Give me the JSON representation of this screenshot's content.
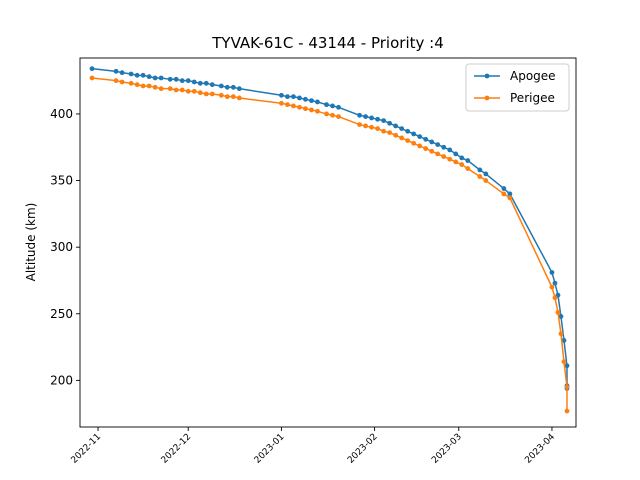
{
  "chart_data": {
    "type": "line",
    "title": "TYVAK-61C - 43144 - Priority :4",
    "xlabel": "",
    "ylabel": "Altitude (km)",
    "xlim": [
      "2022-10-26",
      "2023-04-09"
    ],
    "ylim": [
      165,
      442
    ],
    "x_ticks": [
      "2022-11",
      "2022-12",
      "2023-01",
      "2023-02",
      "2023-03",
      "2023-04"
    ],
    "y_ticks": [
      200,
      250,
      300,
      350,
      400
    ],
    "grid": false,
    "legend": "top-right",
    "series": [
      {
        "name": "Apogee",
        "color": "#1f77b4",
        "points": [
          [
            "2022-10-30",
            434
          ],
          [
            "2022-11-07",
            432
          ],
          [
            "2022-11-09",
            431
          ],
          [
            "2022-11-12",
            430
          ],
          [
            "2022-11-14",
            429
          ],
          [
            "2022-11-16",
            429
          ],
          [
            "2022-11-18",
            428
          ],
          [
            "2022-11-20",
            427
          ],
          [
            "2022-11-22",
            427
          ],
          [
            "2022-11-25",
            426
          ],
          [
            "2022-11-27",
            426
          ],
          [
            "2022-11-29",
            425
          ],
          [
            "2022-12-01",
            425
          ],
          [
            "2022-12-03",
            424
          ],
          [
            "2022-12-05",
            423
          ],
          [
            "2022-12-07",
            423
          ],
          [
            "2022-12-09",
            422
          ],
          [
            "2022-12-12",
            421
          ],
          [
            "2022-12-14",
            420
          ],
          [
            "2022-12-16",
            420
          ],
          [
            "2022-12-18",
            419
          ],
          [
            "2023-01-01",
            414
          ],
          [
            "2023-01-03",
            413
          ],
          [
            "2023-01-05",
            413
          ],
          [
            "2023-01-07",
            412
          ],
          [
            "2023-01-09",
            411
          ],
          [
            "2023-01-11",
            410
          ],
          [
            "2023-01-13",
            409
          ],
          [
            "2023-01-16",
            407
          ],
          [
            "2023-01-18",
            406
          ],
          [
            "2023-01-20",
            405
          ],
          [
            "2023-01-27",
            399
          ],
          [
            "2023-01-29",
            398
          ],
          [
            "2023-01-31",
            397
          ],
          [
            "2023-02-02",
            396
          ],
          [
            "2023-02-04",
            395
          ],
          [
            "2023-02-06",
            393
          ],
          [
            "2023-02-08",
            391
          ],
          [
            "2023-02-10",
            389
          ],
          [
            "2023-02-12",
            387
          ],
          [
            "2023-02-14",
            385
          ],
          [
            "2023-02-16",
            383
          ],
          [
            "2023-02-18",
            381
          ],
          [
            "2023-02-20",
            379
          ],
          [
            "2023-02-22",
            377
          ],
          [
            "2023-02-24",
            375
          ],
          [
            "2023-02-26",
            373
          ],
          [
            "2023-02-28",
            370
          ],
          [
            "2023-03-02",
            367
          ],
          [
            "2023-03-04",
            365
          ],
          [
            "2023-03-08",
            358
          ],
          [
            "2023-03-10",
            355
          ],
          [
            "2023-03-16",
            344
          ],
          [
            "2023-03-18",
            340
          ],
          [
            "2023-04-01",
            281
          ],
          [
            "2023-04-02",
            273
          ],
          [
            "2023-04-03",
            264
          ],
          [
            "2023-04-04",
            248
          ],
          [
            "2023-04-05",
            230
          ],
          [
            "2023-04-06",
            211
          ],
          [
            "2023-04-06",
            196
          ],
          [
            "2023-04-06",
            194
          ]
        ]
      },
      {
        "name": "Perigee",
        "color": "#ff7f0e",
        "points": [
          [
            "2022-10-30",
            427
          ],
          [
            "2022-11-07",
            425
          ],
          [
            "2022-11-09",
            424
          ],
          [
            "2022-11-12",
            423
          ],
          [
            "2022-11-14",
            422
          ],
          [
            "2022-11-16",
            421
          ],
          [
            "2022-11-18",
            421
          ],
          [
            "2022-11-20",
            420
          ],
          [
            "2022-11-22",
            419
          ],
          [
            "2022-11-25",
            419
          ],
          [
            "2022-11-27",
            418
          ],
          [
            "2022-11-29",
            418
          ],
          [
            "2022-12-01",
            417
          ],
          [
            "2022-12-03",
            417
          ],
          [
            "2022-12-05",
            416
          ],
          [
            "2022-12-07",
            415
          ],
          [
            "2022-12-09",
            415
          ],
          [
            "2022-12-12",
            414
          ],
          [
            "2022-12-14",
            413
          ],
          [
            "2022-12-16",
            413
          ],
          [
            "2022-12-18",
            412
          ],
          [
            "2023-01-01",
            408
          ],
          [
            "2023-01-03",
            407
          ],
          [
            "2023-01-05",
            406
          ],
          [
            "2023-01-07",
            405
          ],
          [
            "2023-01-09",
            404
          ],
          [
            "2023-01-11",
            403
          ],
          [
            "2023-01-13",
            402
          ],
          [
            "2023-01-16",
            400
          ],
          [
            "2023-01-18",
            399
          ],
          [
            "2023-01-20",
            398
          ],
          [
            "2023-01-27",
            392
          ],
          [
            "2023-01-29",
            391
          ],
          [
            "2023-01-31",
            390
          ],
          [
            "2023-02-02",
            389
          ],
          [
            "2023-02-04",
            387
          ],
          [
            "2023-02-06",
            386
          ],
          [
            "2023-02-08",
            384
          ],
          [
            "2023-02-10",
            382
          ],
          [
            "2023-02-12",
            380
          ],
          [
            "2023-02-14",
            378
          ],
          [
            "2023-02-16",
            376
          ],
          [
            "2023-02-18",
            374
          ],
          [
            "2023-02-20",
            372
          ],
          [
            "2023-02-22",
            370
          ],
          [
            "2023-02-24",
            368
          ],
          [
            "2023-02-26",
            366
          ],
          [
            "2023-02-28",
            364
          ],
          [
            "2023-03-02",
            362
          ],
          [
            "2023-03-04",
            359
          ],
          [
            "2023-03-08",
            353
          ],
          [
            "2023-03-10",
            350
          ],
          [
            "2023-03-16",
            340
          ],
          [
            "2023-03-18",
            337
          ],
          [
            "2023-04-01",
            270
          ],
          [
            "2023-04-02",
            262
          ],
          [
            "2023-04-03",
            251
          ],
          [
            "2023-04-04",
            235
          ],
          [
            "2023-04-05",
            214
          ],
          [
            "2023-04-06",
            195
          ],
          [
            "2023-04-06",
            177
          ]
        ]
      }
    ]
  }
}
